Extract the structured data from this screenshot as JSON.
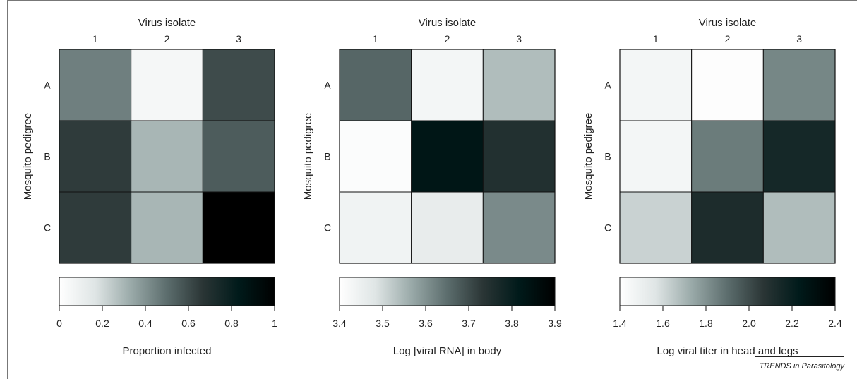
{
  "colors": {
    "colorbar_stops": [
      "#ffffff",
      "#dfe5e5",
      "#9aaaa9",
      "#5c6d6d",
      "#2a3535",
      "#001a1a",
      "#000000"
    ],
    "cell_border": "#111111",
    "frame": "#777777"
  },
  "credit": "TRENDS in Parasitology",
  "chart_data": [
    {
      "type": "heatmap",
      "title": "",
      "xlabel": "Virus isolate",
      "ylabel": "Mosquito pedigree",
      "x_categories": [
        "1",
        "2",
        "3"
      ],
      "y_categories": [
        "A",
        "B",
        "C"
      ],
      "values": [
        [
          0.45,
          0.05,
          0.6
        ],
        [
          0.65,
          0.3,
          0.55
        ],
        [
          0.65,
          0.3,
          1.0
        ]
      ],
      "colorbar": {
        "label": "Proportion infected",
        "range": [
          0,
          1
        ],
        "ticks": [
          "0",
          "0.2",
          "0.4",
          "0.6",
          "0.8",
          "1"
        ],
        "tick_values": [
          0,
          0.2,
          0.4,
          0.6,
          0.8,
          1
        ]
      }
    },
    {
      "type": "heatmap",
      "title": "",
      "xlabel": "Virus isolate",
      "ylabel": "Mosquito pedigree",
      "x_categories": [
        "1",
        "2",
        "3"
      ],
      "y_categories": [
        "A",
        "B",
        "C"
      ],
      "values": [
        [
          3.66,
          3.43,
          3.54
        ],
        [
          3.41,
          3.83,
          3.75
        ],
        [
          3.44,
          3.46,
          3.61
        ]
      ],
      "colorbar": {
        "label": "Log [viral RNA] in body",
        "range": [
          3.4,
          3.9
        ],
        "ticks": [
          "3.4",
          "3.5",
          "3.6",
          "3.7",
          "3.8",
          "3.9"
        ],
        "tick_values": [
          3.4,
          3.5,
          3.6,
          3.7,
          3.8,
          3.9
        ]
      }
    },
    {
      "type": "heatmap",
      "title": "",
      "xlabel": "Virus isolate",
      "ylabel": "Mosquito pedigree",
      "x_categories": [
        "1",
        "2",
        "3"
      ],
      "y_categories": [
        "A",
        "B",
        "C"
      ],
      "values": [
        [
          1.46,
          1.41,
          1.83
        ],
        [
          1.46,
          1.86,
          2.15
        ],
        [
          1.62,
          2.12,
          1.68
        ]
      ],
      "colorbar": {
        "label": "Log viral titer in head and legs",
        "range": [
          1.4,
          2.4
        ],
        "ticks": [
          "1.4",
          "1.6",
          "1.8",
          "2.0",
          "2.2",
          "2.4"
        ],
        "tick_values": [
          1.4,
          1.6,
          1.8,
          2.0,
          2.2,
          2.4
        ]
      }
    }
  ]
}
